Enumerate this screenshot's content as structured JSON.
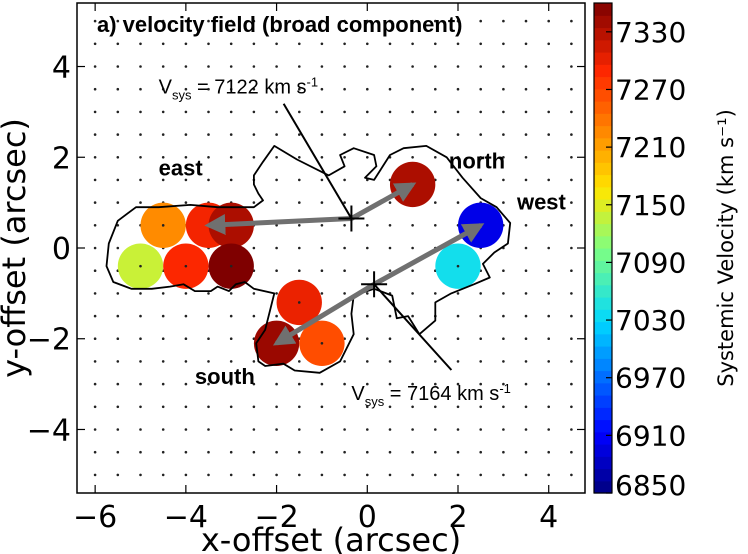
{
  "chart_data": {
    "type": "scatter",
    "title": "a) velocity field (broad component)",
    "xlabel": "x-offset (arcsec)",
    "ylabel": "y-offset (arcsec)",
    "xlim": [
      -6.4,
      4.8
    ],
    "ylim": [
      -5.4,
      5.4
    ],
    "xticks": [
      -6,
      -4,
      -2,
      0,
      2,
      4
    ],
    "yticks": [
      -4,
      -2,
      0,
      2,
      4
    ],
    "xtick_labels": [
      "−6",
      "−4",
      "−2",
      "0",
      "2",
      "4"
    ],
    "ytick_labels": [
      "−4",
      "−2",
      "0",
      "2",
      "4"
    ],
    "colorbar": {
      "label": "Systemic Velocity (km s⁻¹)",
      "min": 6850,
      "max": 7360,
      "ticks": [
        6850,
        6910,
        6970,
        7030,
        7090,
        7150,
        7210,
        7270,
        7330
      ],
      "tick_labels": [
        "6850",
        "6910",
        "6970",
        "7030",
        "7090",
        "7150",
        "7210",
        "7270",
        "7330"
      ]
    },
    "spaxels": [
      {
        "x": -5.0,
        "y": -0.4,
        "v": 7140
      },
      {
        "x": -4.5,
        "y": 0.5,
        "v": 7225
      },
      {
        "x": -4.0,
        "y": -0.4,
        "v": 7290
      },
      {
        "x": -3.5,
        "y": 0.5,
        "v": 7295
      },
      {
        "x": -3.0,
        "y": 0.5,
        "v": 7335
      },
      {
        "x": -3.0,
        "y": -0.4,
        "v": 7360
      },
      {
        "x": -1.5,
        "y": -1.2,
        "v": 7300
      },
      {
        "x": -2.0,
        "y": -2.1,
        "v": 7345
      },
      {
        "x": -1.0,
        "y": -2.1,
        "v": 7265
      },
      {
        "x": 1.0,
        "y": 1.4,
        "v": 7335
      },
      {
        "x": 2.5,
        "y": 0.5,
        "v": 6900
      },
      {
        "x": 2.0,
        "y": -0.4,
        "v": 7040
      }
    ],
    "grid_points": {
      "x_start": -6,
      "x_end": 4.5,
      "y_start": -5,
      "y_end": 5,
      "step": 0.5
    },
    "contour": [
      [
        -4.6,
        0.9
      ],
      [
        -3.9,
        0.95
      ],
      [
        -3.3,
        0.9
      ],
      [
        -2.5,
        0.9
      ],
      [
        -2.3,
        1.05
      ],
      [
        -2.4,
        1.2
      ],
      [
        -2.5,
        1.4
      ],
      [
        -2.5,
        1.6
      ],
      [
        -2.3,
        1.9
      ],
      [
        -2.05,
        2.25
      ],
      [
        -1.55,
        1.95
      ],
      [
        -0.85,
        1.6
      ],
      [
        -0.5,
        1.8
      ],
      [
        -0.6,
        2.05
      ],
      [
        -0.3,
        2.2
      ],
      [
        0.15,
        2.05
      ],
      [
        0.2,
        1.8
      ],
      [
        -0.05,
        1.55
      ],
      [
        0.15,
        1.5
      ],
      [
        0.5,
        2.05
      ],
      [
        0.8,
        2.2
      ],
      [
        1.3,
        2.25
      ],
      [
        1.75,
        2.0
      ],
      [
        2.1,
        1.55
      ],
      [
        2.5,
        1.1
      ],
      [
        2.85,
        0.9
      ],
      [
        3.15,
        0.55
      ],
      [
        3.1,
        0.1
      ],
      [
        2.8,
        -0.1
      ],
      [
        2.55,
        -0.35
      ],
      [
        2.7,
        -0.65
      ],
      [
        2.35,
        -0.8
      ],
      [
        1.85,
        -1.0
      ],
      [
        1.5,
        -1.2
      ],
      [
        1.5,
        -1.6
      ],
      [
        1.15,
        -1.9
      ],
      [
        0.9,
        -1.5
      ],
      [
        0.65,
        -1.55
      ],
      [
        0.55,
        -1.05
      ],
      [
        0.15,
        -0.9
      ],
      [
        -0.3,
        -1.05
      ],
      [
        -0.35,
        -1.45
      ],
      [
        -0.3,
        -1.9
      ],
      [
        -0.6,
        -2.5
      ],
      [
        -1.05,
        -2.75
      ],
      [
        -1.6,
        -2.7
      ],
      [
        -1.85,
        -2.55
      ],
      [
        -2.25,
        -2.6
      ],
      [
        -2.4,
        -2.5
      ],
      [
        -2.45,
        -2.1
      ],
      [
        -2.25,
        -1.8
      ],
      [
        -2.05,
        -1.0
      ],
      [
        -2.5,
        -0.9
      ],
      [
        -2.7,
        -0.75
      ],
      [
        -2.9,
        -0.8
      ],
      [
        -3.05,
        -0.95
      ],
      [
        -3.3,
        -0.85
      ],
      [
        -3.45,
        -0.95
      ],
      [
        -3.8,
        -0.95
      ],
      [
        -4.05,
        -0.8
      ],
      [
        -4.35,
        -0.85
      ],
      [
        -4.75,
        -0.9
      ],
      [
        -5.2,
        -0.9
      ],
      [
        -5.6,
        -0.75
      ],
      [
        -5.75,
        -0.4
      ],
      [
        -5.7,
        0.1
      ],
      [
        -5.5,
        0.6
      ],
      [
        -5.1,
        0.9
      ]
    ],
    "kinematic_axes": [
      {
        "name": "north-east",
        "center": {
          "x": -0.35,
          "y": 0.65
        },
        "arrowheads": [
          {
            "x": 1.0,
            "y": 1.4
          },
          {
            "x": -3.5,
            "y": 0.5
          }
        ]
      },
      {
        "name": "south-west",
        "center": {
          "x": 0.15,
          "y": -0.8
        },
        "arrowheads": [
          {
            "x": 2.5,
            "y": 0.5
          },
          {
            "x": -2.0,
            "y": -2.1
          }
        ]
      }
    ],
    "annotations": [
      {
        "text": "east",
        "x": -4.6,
        "y": 1.6
      },
      {
        "text": "north",
        "x": 1.8,
        "y": 1.75
      },
      {
        "text": "west",
        "x": 3.3,
        "y": 0.85
      },
      {
        "text": "south",
        "x": -3.8,
        "y": -3.0
      }
    ],
    "vsys_labels": [
      {
        "prefix": "V",
        "sub": "sys",
        "value": " = 7122 km s",
        "sup": "-1",
        "anchor": {
          "x": -4.6,
          "y": 3.4
        },
        "leader_end": {
          "x": -0.35,
          "y": 0.65
        }
      },
      {
        "prefix": "V",
        "sub": "sys",
        "value": " = 7164 km s",
        "sup": "-1",
        "anchor": {
          "x": -0.35,
          "y": -3.35
        },
        "leader_end": {
          "x": 0.15,
          "y": -0.8
        }
      }
    ]
  }
}
